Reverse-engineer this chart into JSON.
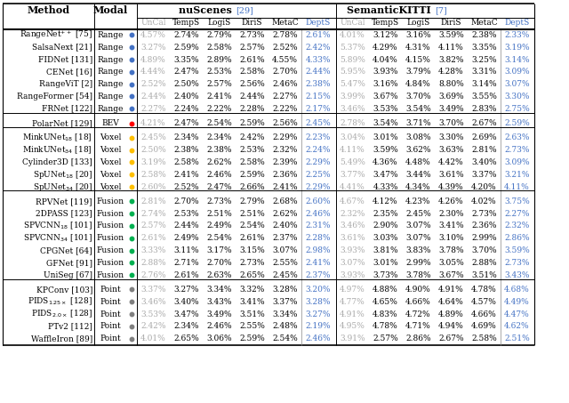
{
  "col_headers": [
    "UnCal",
    "TempS",
    "LogiS",
    "DiriS",
    "MetaC",
    "DeptS"
  ],
  "groups": [
    {
      "name": "Range",
      "rows": [
        {
          "method": "RangeNet$^{++}$ [75]",
          "modal": "Range",
          "dot_color": "#4472C4",
          "nuscenes": [
            "4.57%",
            "2.74%",
            "2.79%",
            "2.73%",
            "2.78%",
            "2.61%"
          ],
          "kitti": [
            "4.01%",
            "3.12%",
            "3.16%",
            "3.59%",
            "2.38%",
            "2.33%"
          ]
        },
        {
          "method": "SalsaNext [21]",
          "modal": "Range",
          "dot_color": "#4472C4",
          "nuscenes": [
            "3.27%",
            "2.59%",
            "2.58%",
            "2.57%",
            "2.52%",
            "2.42%"
          ],
          "kitti": [
            "5.37%",
            "4.29%",
            "4.31%",
            "4.11%",
            "3.35%",
            "3.19%"
          ]
        },
        {
          "method": "FIDNet [131]",
          "modal": "Range",
          "dot_color": "#4472C4",
          "nuscenes": [
            "4.89%",
            "3.35%",
            "2.89%",
            "2.61%",
            "4.55%",
            "4.33%"
          ],
          "kitti": [
            "5.89%",
            "4.04%",
            "4.15%",
            "3.82%",
            "3.25%",
            "3.14%"
          ]
        },
        {
          "method": "CENet [16]",
          "modal": "Range",
          "dot_color": "#4472C4",
          "nuscenes": [
            "4.44%",
            "2.47%",
            "2.53%",
            "2.58%",
            "2.70%",
            "2.44%"
          ],
          "kitti": [
            "5.95%",
            "3.93%",
            "3.79%",
            "4.28%",
            "3.31%",
            "3.09%"
          ]
        },
        {
          "method": "RangeViT [2]",
          "modal": "Range",
          "dot_color": "#4472C4",
          "nuscenes": [
            "2.52%",
            "2.50%",
            "2.57%",
            "2.56%",
            "2.46%",
            "2.38%"
          ],
          "kitti": [
            "5.47%",
            "3.16%",
            "4.84%",
            "8.80%",
            "3.14%",
            "3.07%"
          ]
        },
        {
          "method": "RangeFormer [54]",
          "modal": "Range",
          "dot_color": "#4472C4",
          "nuscenes": [
            "2.44%",
            "2.40%",
            "2.41%",
            "2.44%",
            "2.27%",
            "2.15%"
          ],
          "kitti": [
            "3.99%",
            "3.67%",
            "3.70%",
            "3.69%",
            "3.55%",
            "3.30%"
          ]
        },
        {
          "method": "FRNet [122]",
          "modal": "Range",
          "dot_color": "#4472C4",
          "nuscenes": [
            "2.27%",
            "2.24%",
            "2.22%",
            "2.28%",
            "2.22%",
            "2.17%"
          ],
          "kitti": [
            "3.46%",
            "3.53%",
            "3.54%",
            "3.49%",
            "2.83%",
            "2.75%"
          ]
        }
      ]
    },
    {
      "name": "BEV",
      "rows": [
        {
          "method": "PolarNet [129]",
          "modal": "BEV",
          "dot_color": "#FF0000",
          "nuscenes": [
            "4.21%",
            "2.47%",
            "2.54%",
            "2.59%",
            "2.56%",
            "2.45%"
          ],
          "kitti": [
            "2.78%",
            "3.54%",
            "3.71%",
            "3.70%",
            "2.67%",
            "2.59%"
          ]
        }
      ]
    },
    {
      "name": "Voxel",
      "rows": [
        {
          "method": "MinkUNet$_{18}$ [18]",
          "modal": "Voxel",
          "dot_color": "#FFC000",
          "nuscenes": [
            "2.45%",
            "2.34%",
            "2.34%",
            "2.42%",
            "2.29%",
            "2.23%"
          ],
          "kitti": [
            "3.04%",
            "3.01%",
            "3.08%",
            "3.30%",
            "2.69%",
            "2.63%"
          ]
        },
        {
          "method": "MinkUNet$_{34}$ [18]",
          "modal": "Voxel",
          "dot_color": "#FFC000",
          "nuscenes": [
            "2.50%",
            "2.38%",
            "2.38%",
            "2.53%",
            "2.32%",
            "2.24%"
          ],
          "kitti": [
            "4.11%",
            "3.59%",
            "3.62%",
            "3.63%",
            "2.81%",
            "2.73%"
          ]
        },
        {
          "method": "Cylinder3D [133]",
          "modal": "Voxel",
          "dot_color": "#FFC000",
          "nuscenes": [
            "3.19%",
            "2.58%",
            "2.62%",
            "2.58%",
            "2.39%",
            "2.29%"
          ],
          "kitti": [
            "5.49%",
            "4.36%",
            "4.48%",
            "4.42%",
            "3.40%",
            "3.09%"
          ]
        },
        {
          "method": "SpUNet$_{18}$ [20]",
          "modal": "Voxel",
          "dot_color": "#FFC000",
          "nuscenes": [
            "2.58%",
            "2.41%",
            "2.46%",
            "2.59%",
            "2.36%",
            "2.25%"
          ],
          "kitti": [
            "3.77%",
            "3.47%",
            "3.44%",
            "3.61%",
            "3.37%",
            "3.21%"
          ]
        },
        {
          "method": "SpUNet$_{34}$ [20]",
          "modal": "Voxel",
          "dot_color": "#FFC000",
          "nuscenes": [
            "2.60%",
            "2.52%",
            "2.47%",
            "2.66%",
            "2.41%",
            "2.29%"
          ],
          "kitti": [
            "4.41%",
            "4.33%",
            "4.34%",
            "4.39%",
            "4.20%",
            "4.11%"
          ]
        }
      ]
    },
    {
      "name": "Fusion",
      "rows": [
        {
          "method": "RPVNet [119]",
          "modal": "Fusion",
          "dot_color": "#00B050",
          "nuscenes": [
            "2.81%",
            "2.70%",
            "2.73%",
            "2.79%",
            "2.68%",
            "2.60%"
          ],
          "kitti": [
            "4.67%",
            "4.12%",
            "4.23%",
            "4.26%",
            "4.02%",
            "3.75%"
          ]
        },
        {
          "method": "2DPASS [123]",
          "modal": "Fusion",
          "dot_color": "#00B050",
          "nuscenes": [
            "2.74%",
            "2.53%",
            "2.51%",
            "2.51%",
            "2.62%",
            "2.46%"
          ],
          "kitti": [
            "2.32%",
            "2.35%",
            "2.45%",
            "2.30%",
            "2.73%",
            "2.27%"
          ]
        },
        {
          "method": "SPVCNN$_{18}$ [101]",
          "modal": "Fusion",
          "dot_color": "#00B050",
          "nuscenes": [
            "2.57%",
            "2.44%",
            "2.49%",
            "2.54%",
            "2.40%",
            "2.31%"
          ],
          "kitti": [
            "3.46%",
            "2.90%",
            "3.07%",
            "3.41%",
            "2.36%",
            "2.32%"
          ]
        },
        {
          "method": "SPVCNN$_{34}$ [101]",
          "modal": "Fusion",
          "dot_color": "#00B050",
          "nuscenes": [
            "2.61%",
            "2.49%",
            "2.54%",
            "2.61%",
            "2.37%",
            "2.28%"
          ],
          "kitti": [
            "3.61%",
            "3.03%",
            "3.07%",
            "3.10%",
            "2.99%",
            "2.86%"
          ]
        },
        {
          "method": "CPGNet [64]",
          "modal": "Fusion",
          "dot_color": "#00B050",
          "nuscenes": [
            "3.33%",
            "3.11%",
            "3.17%",
            "3.15%",
            "3.07%",
            "2.98%"
          ],
          "kitti": [
            "3.93%",
            "3.81%",
            "3.83%",
            "3.78%",
            "3.70%",
            "3.59%"
          ]
        },
        {
          "method": "GFNet [91]",
          "modal": "Fusion",
          "dot_color": "#00B050",
          "nuscenes": [
            "2.88%",
            "2.71%",
            "2.70%",
            "2.73%",
            "2.55%",
            "2.41%"
          ],
          "kitti": [
            "3.07%",
            "3.01%",
            "2.99%",
            "3.05%",
            "2.88%",
            "2.73%"
          ]
        },
        {
          "method": "UniSeg [67]",
          "modal": "Fusion",
          "dot_color": "#00B050",
          "nuscenes": [
            "2.76%",
            "2.61%",
            "2.63%",
            "2.65%",
            "2.45%",
            "2.37%"
          ],
          "kitti": [
            "3.93%",
            "3.73%",
            "3.78%",
            "3.67%",
            "3.51%",
            "3.43%"
          ]
        }
      ]
    },
    {
      "name": "Point",
      "rows": [
        {
          "method": "KPConv [103]",
          "modal": "Point",
          "dot_color": "#808080",
          "nuscenes": [
            "3.37%",
            "3.27%",
            "3.34%",
            "3.32%",
            "3.28%",
            "3.20%"
          ],
          "kitti": [
            "4.97%",
            "4.88%",
            "4.90%",
            "4.91%",
            "4.78%",
            "4.68%"
          ]
        },
        {
          "method": "PIDS$_{1.25\\times}$ [128]",
          "modal": "Point",
          "dot_color": "#808080",
          "nuscenes": [
            "3.46%",
            "3.40%",
            "3.43%",
            "3.41%",
            "3.37%",
            "3.28%"
          ],
          "kitti": [
            "4.77%",
            "4.65%",
            "4.66%",
            "4.64%",
            "4.57%",
            "4.49%"
          ]
        },
        {
          "method": "PIDS$_{2.0\\times}$ [128]",
          "modal": "Point",
          "dot_color": "#808080",
          "nuscenes": [
            "3.53%",
            "3.47%",
            "3.49%",
            "3.51%",
            "3.34%",
            "3.27%"
          ],
          "kitti": [
            "4.91%",
            "4.83%",
            "4.72%",
            "4.89%",
            "4.66%",
            "4.47%"
          ]
        },
        {
          "method": "PTv2 [112]",
          "modal": "Point",
          "dot_color": "#808080",
          "nuscenes": [
            "2.42%",
            "2.34%",
            "2.46%",
            "2.55%",
            "2.48%",
            "2.19%"
          ],
          "kitti": [
            "4.95%",
            "4.78%",
            "4.71%",
            "4.94%",
            "4.69%",
            "4.62%"
          ]
        },
        {
          "method": "WaffleIron [89]",
          "modal": "Point",
          "dot_color": "#808080",
          "nuscenes": [
            "4.01%",
            "2.65%",
            "3.06%",
            "2.59%",
            "2.54%",
            "2.46%"
          ],
          "kitti": [
            "3.91%",
            "2.57%",
            "2.86%",
            "2.67%",
            "2.58%",
            "2.51%"
          ]
        }
      ]
    }
  ],
  "uncal_color": "#AAAAAA",
  "depts_color": "#4472C4",
  "normal_color": "#000000",
  "header_blue": "#4472C4",
  "bg_color": "#FFFFFF"
}
